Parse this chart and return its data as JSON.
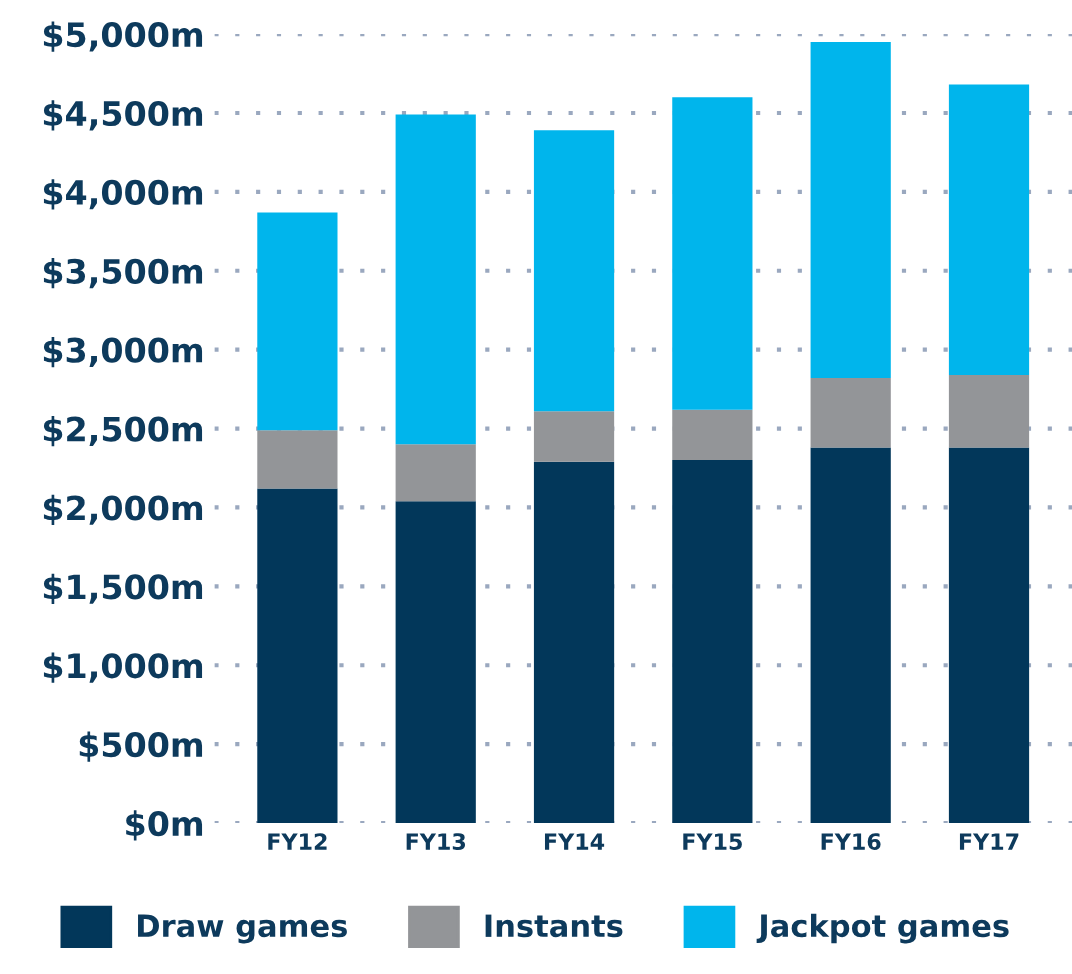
{
  "chart_data": {
    "type": "bar",
    "stacked": true,
    "categories": [
      "FY12",
      "FY13",
      "FY14",
      "FY15",
      "FY16",
      "FY17"
    ],
    "series": [
      {
        "name": "Draw games",
        "color": "#02375a",
        "values": [
          2120,
          2040,
          2290,
          2300,
          2380,
          2380
        ]
      },
      {
        "name": "Instants",
        "color": "#939598",
        "values": [
          370,
          360,
          320,
          320,
          440,
          460
        ]
      },
      {
        "name": "Jackpot games",
        "color": "#00b5ec",
        "values": [
          1380,
          2090,
          1780,
          1980,
          2130,
          1840
        ]
      }
    ],
    "ylim": [
      0,
      5000
    ],
    "yticks": [
      {
        "value": 0,
        "label": "$0m"
      },
      {
        "value": 500,
        "label": "$500m"
      },
      {
        "value": 1000,
        "label": "$1,000m"
      },
      {
        "value": 1500,
        "label": "$1,500m"
      },
      {
        "value": 2000,
        "label": "$2,000m"
      },
      {
        "value": 2500,
        "label": "$2,500m"
      },
      {
        "value": 3000,
        "label": "$3,000m"
      },
      {
        "value": 3500,
        "label": "$3,500m"
      },
      {
        "value": 4000,
        "label": "$4,000m"
      },
      {
        "value": 4500,
        "label": "$4,500m"
      },
      {
        "value": 5000,
        "label": "$5,000m"
      }
    ],
    "grid": "y",
    "legend": "bottom"
  }
}
